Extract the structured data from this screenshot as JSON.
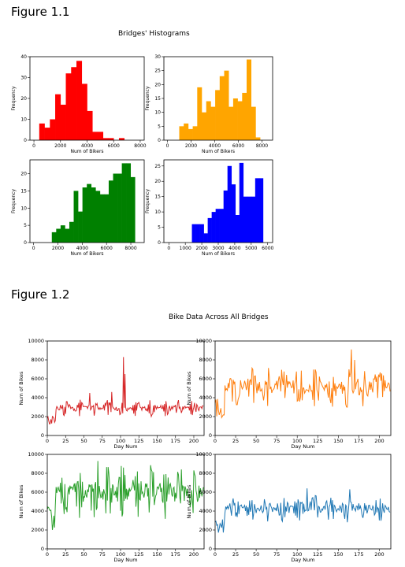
{
  "figure1": {
    "heading": "Figure 1.1",
    "suptitle": "Bridges' Histograms"
  },
  "figure2": {
    "heading": "Figure 1.2",
    "suptitle": "Bike Data Across All Bridges"
  },
  "chart_data": [
    {
      "type": "bar",
      "subtype": "histogram",
      "color": "#ff0000",
      "xlabel": "Num of Bikers",
      "ylabel": "Frequency",
      "xlim": [
        -300,
        8300
      ],
      "ylim": [
        0,
        40
      ],
      "xticks": [
        0,
        2000,
        4000,
        6000,
        8000
      ],
      "yticks": [
        0,
        10,
        20,
        30,
        40
      ],
      "bin_edges": [
        400,
        800,
        1200,
        1600,
        2000,
        2400,
        2800,
        3200,
        3600,
        4000,
        4400,
        4800,
        5200,
        5600,
        6000,
        6400,
        6800
      ],
      "values": [
        8,
        6,
        10,
        22,
        17,
        32,
        35,
        38,
        27,
        14,
        4,
        4,
        1,
        1,
        0,
        1
      ]
    },
    {
      "type": "bar",
      "subtype": "histogram",
      "color": "#ffa500",
      "xlabel": "Num of Bikers",
      "ylabel": "Frequency",
      "xlim": [
        -300,
        8900
      ],
      "ylim": [
        0,
        30
      ],
      "xticks": [
        0,
        2000,
        4000,
        6000,
        8000
      ],
      "yticks": [
        0,
        5,
        10,
        15,
        20,
        25,
        30
      ],
      "bin_edges": [
        1000,
        1380,
        1760,
        2140,
        2520,
        2900,
        3280,
        3660,
        4040,
        4420,
        4800,
        5180,
        5560,
        5940,
        6320,
        6700,
        7080,
        7460,
        7840,
        8220
      ],
      "values": [
        5,
        6,
        4,
        5,
        19,
        10,
        14,
        12,
        18,
        23,
        25,
        12,
        15,
        14,
        17,
        29,
        12,
        1,
        0
      ]
    },
    {
      "type": "bar",
      "subtype": "histogram",
      "color": "#008000",
      "xlabel": "Num of Bikers",
      "ylabel": "Frequency",
      "xlim": [
        -300,
        9100
      ],
      "ylim": [
        0,
        24
      ],
      "xticks": [
        0,
        2000,
        4000,
        6000,
        8000
      ],
      "yticks": [
        0,
        5,
        10,
        15,
        20
      ],
      "bin_edges": [
        1500,
        1860,
        2220,
        2580,
        2940,
        3300,
        3660,
        4020,
        4380,
        4740,
        5100,
        5460,
        5820,
        6180,
        6540,
        6900,
        7260,
        7620,
        7980,
        8340,
        8700
      ],
      "values": [
        3,
        4,
        5,
        4,
        6,
        15,
        9,
        16,
        17,
        16,
        15,
        14,
        14,
        18,
        20,
        20,
        23,
        23,
        19,
        0
      ]
    },
    {
      "type": "bar",
      "subtype": "histogram",
      "color": "#0000ff",
      "xlabel": "Num of Bikers",
      "ylabel": "Frequency",
      "xlim": [
        -300,
        6300
      ],
      "ylim": [
        0,
        27
      ],
      "xticks": [
        0,
        1000,
        2000,
        3000,
        4000,
        5000,
        6000
      ],
      "yticks": [
        0,
        5,
        10,
        15,
        20,
        25
      ],
      "bin_edges": [
        1400,
        1640,
        1880,
        2120,
        2360,
        2600,
        2840,
        3080,
        3320,
        3560,
        3800,
        4040,
        4280,
        4520,
        4760,
        5000,
        5240,
        5480,
        5720,
        5960
      ],
      "values": [
        6,
        6,
        6,
        3,
        8,
        10,
        11,
        11,
        17,
        25,
        19,
        9,
        26,
        15,
        15,
        15,
        21,
        21,
        0
      ]
    },
    {
      "type": "line",
      "color": "#d62728",
      "xlabel": "Day Num",
      "ylabel": "Num of Bikes",
      "xlim": [
        0,
        214
      ],
      "ylim": [
        0,
        10000
      ],
      "xticks": [
        0,
        25,
        50,
        75,
        100,
        125,
        150,
        175,
        200
      ],
      "yticks": [
        0,
        2000,
        4000,
        6000,
        8000,
        10000
      ],
      "base_level": 2900,
      "amplitude": 900,
      "spikes": [
        [
          104,
          8300
        ],
        [
          106,
          6500
        ],
        [
          58,
          4500
        ],
        [
          88,
          4600
        ]
      ],
      "n_points": 214
    },
    {
      "type": "line",
      "color": "#ff7f0e",
      "xlabel": "Day Num",
      "ylabel": "Num of Bikes",
      "xlim": [
        0,
        214
      ],
      "ylim": [
        0,
        10000
      ],
      "xticks": [
        0,
        25,
        50,
        75,
        100,
        125,
        150,
        175,
        200
      ],
      "yticks": [
        0,
        2000,
        4000,
        6000,
        8000,
        10000
      ],
      "base_level": 5200,
      "amplitude": 2300,
      "spikes": [
        [
          166,
          9100
        ],
        [
          170,
          8000
        ]
      ],
      "n_points": 214
    },
    {
      "type": "line",
      "color": "#2ca02c",
      "xlabel": "Day Num",
      "ylabel": "Num of Bikes",
      "xlim": [
        0,
        214
      ],
      "ylim": [
        0,
        10000
      ],
      "xticks": [
        0,
        25,
        50,
        75,
        100,
        125,
        150,
        175,
        200
      ],
      "yticks": [
        0,
        2000,
        4000,
        6000,
        8000,
        10000
      ],
      "base_level": 6000,
      "amplitude": 2900,
      "spikes": [
        [
          69,
          9300
        ]
      ],
      "n_points": 214
    },
    {
      "type": "line",
      "color": "#1f77b4",
      "xlabel": "Day Num",
      "ylabel": "Num of Bikes",
      "xlim": [
        0,
        214
      ],
      "ylim": [
        0,
        10000
      ],
      "xticks": [
        0,
        25,
        50,
        75,
        100,
        125,
        150,
        175,
        200
      ],
      "yticks": [
        0,
        2000,
        4000,
        6000,
        8000,
        10000
      ],
      "base_level": 4300,
      "amplitude": 1500,
      "spikes": [
        [
          164,
          6300
        ],
        [
          112,
          6400
        ]
      ],
      "n_points": 214
    }
  ]
}
